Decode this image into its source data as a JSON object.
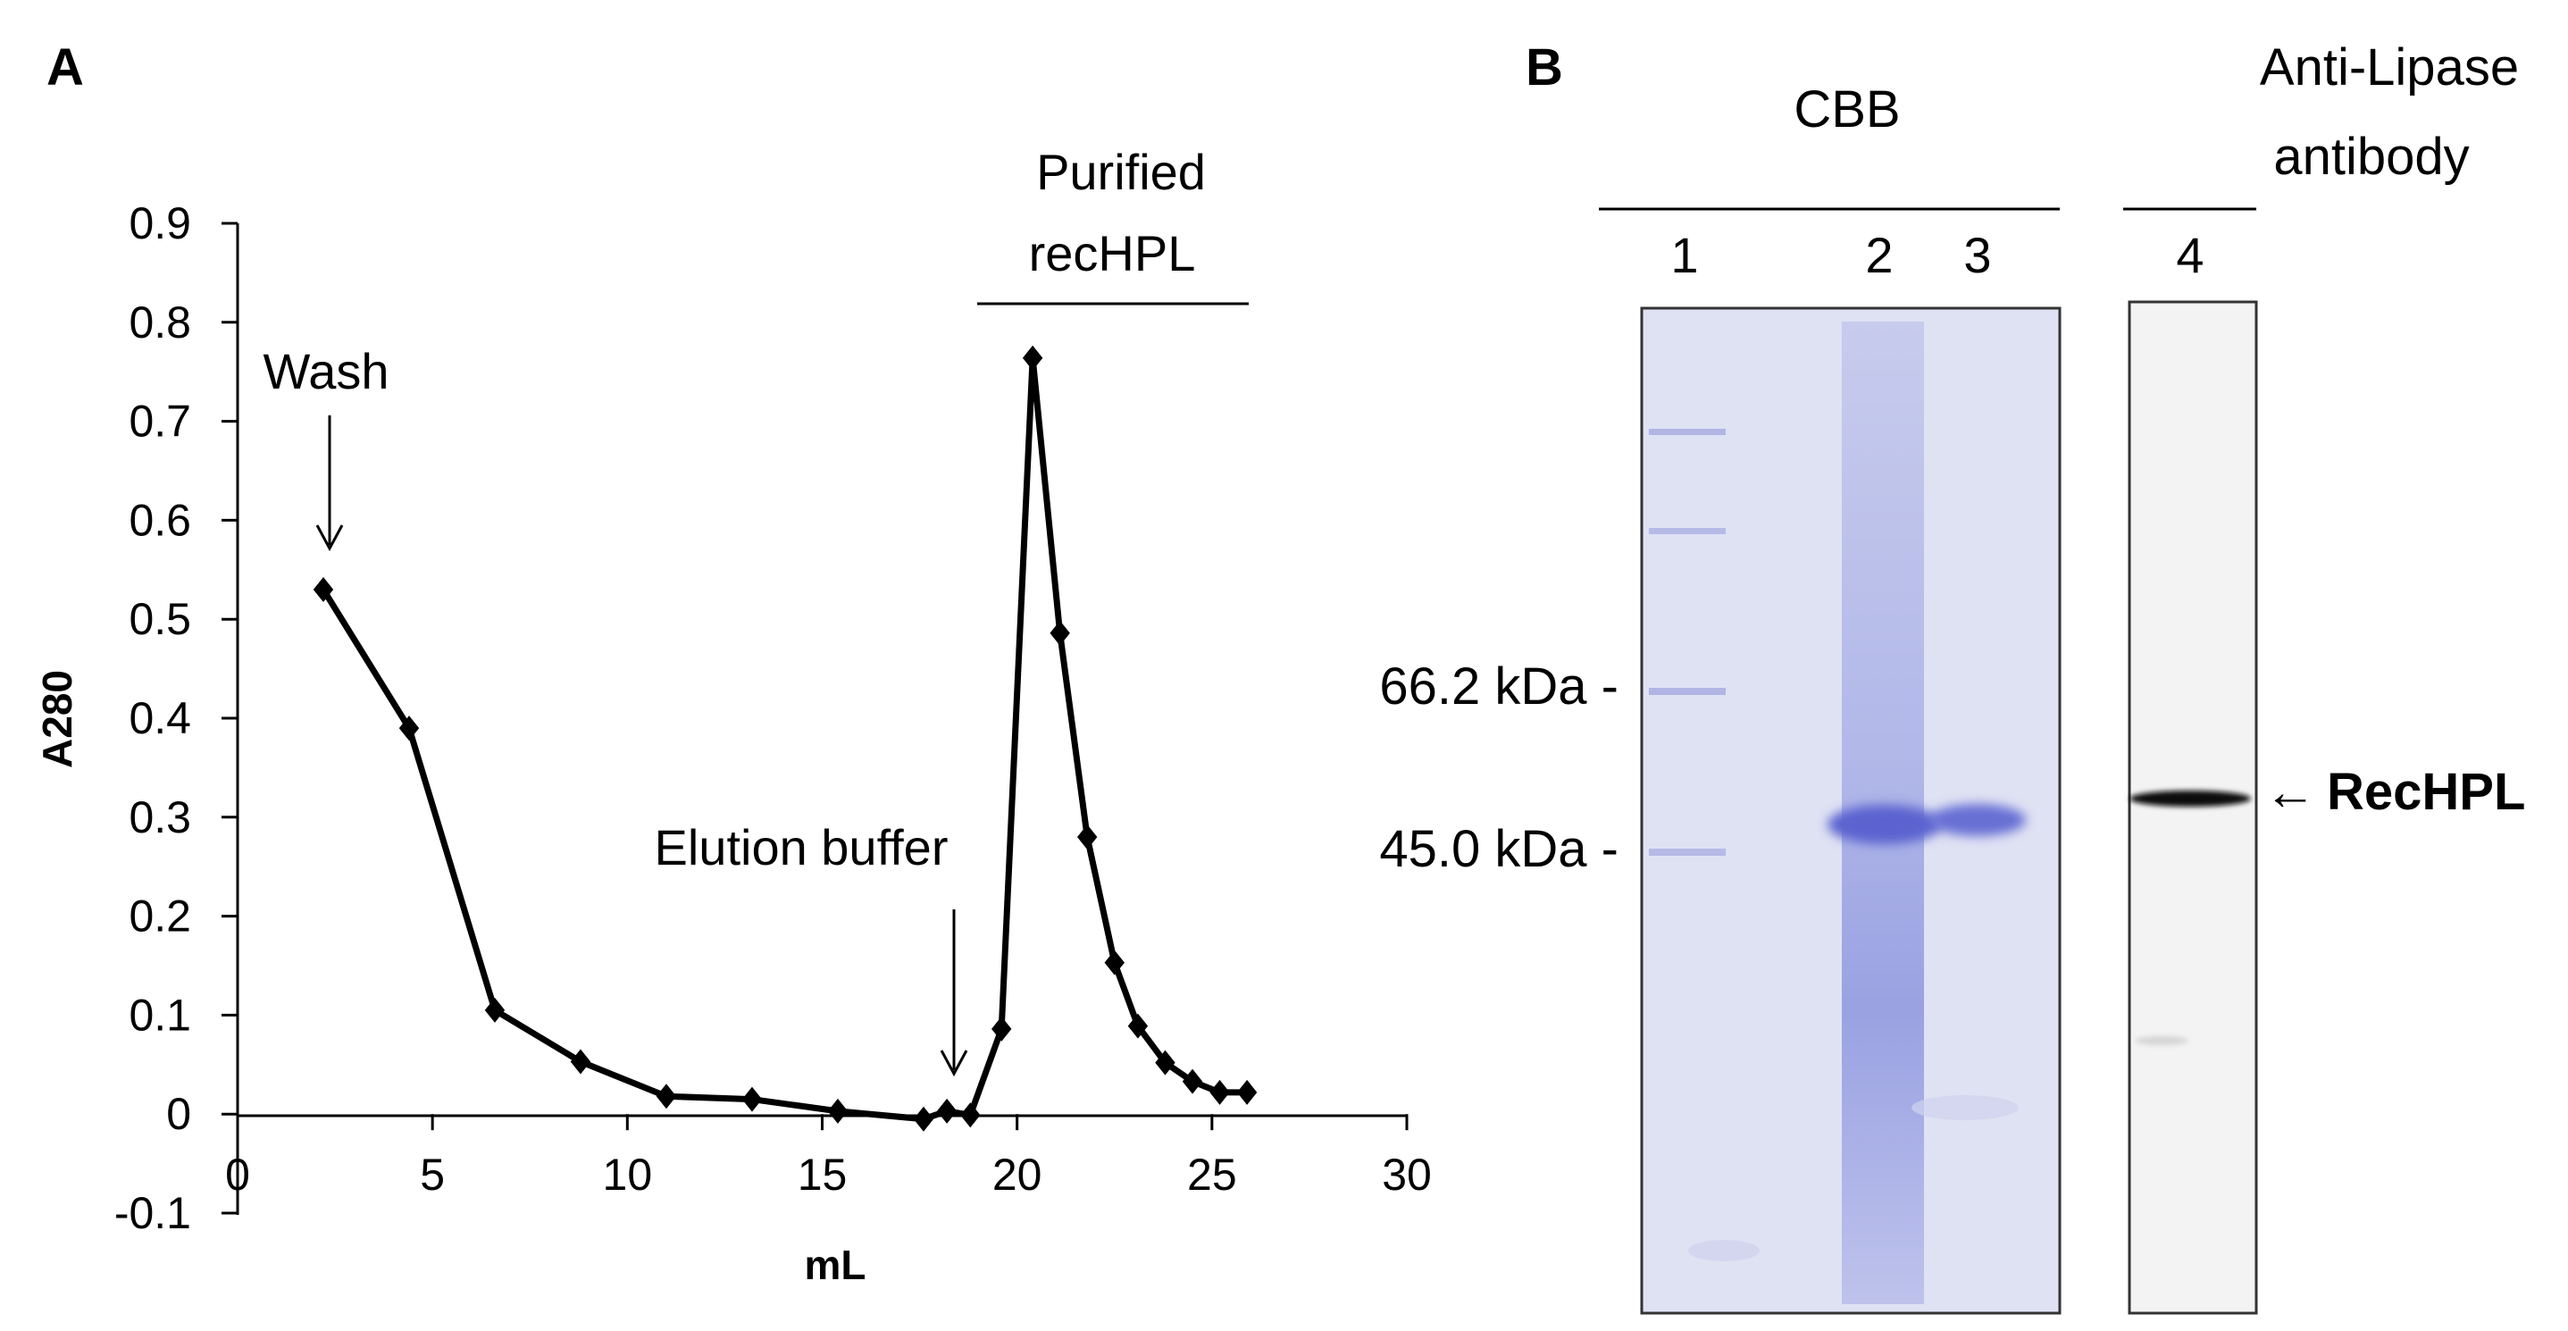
{
  "panel_a": {
    "label": "A",
    "annotations": {
      "wash": "Wash",
      "elution": "Elution buffer",
      "purified_line1": "Purified",
      "purified_line2": "recHPL"
    }
  },
  "panel_b": {
    "label": "B",
    "cbb_header": "CBB",
    "antibody_header_line1": "Anti-Lipase",
    "antibody_header_line2": "antibody",
    "lanes": [
      "1",
      "2",
      "3",
      "4"
    ],
    "markers": [
      "66.2 kDa -",
      "45.0 kDa -"
    ],
    "band_label": "RecHPL",
    "arrow_glyph": "←",
    "colors": {
      "gel": "#dfe2f3",
      "band": "#5b64d0",
      "blot_bg": "#f3f3f3",
      "blot_band": "#111111"
    }
  },
  "chart_data": {
    "type": "line",
    "title": "",
    "xlabel": "mL",
    "ylabel": "A280",
    "xlim": [
      0,
      30
    ],
    "ylim": [
      -0.1,
      0.9
    ],
    "xticks": [
      0,
      5,
      10,
      15,
      20,
      25,
      30
    ],
    "yticks": [
      -0.1,
      0,
      0.1,
      0.2,
      0.3,
      0.4,
      0.5,
      0.6,
      0.7,
      0.8,
      0.9
    ],
    "ytick_labels": [
      "-0.1",
      "0",
      "0.1",
      "0.2",
      "0.3",
      "0.4",
      "0.5",
      "0.6",
      "0.7",
      "0.8",
      "0.9"
    ],
    "grid": false,
    "series": [
      {
        "marker": "diamond",
        "color": "#000000",
        "x": [
          2.2,
          4.4,
          6.6,
          8.8,
          11.0,
          13.2,
          15.4,
          17.6,
          18.2,
          18.8,
          19.6,
          20.4,
          21.1,
          21.8,
          22.5,
          23.1,
          23.8,
          24.5,
          25.2,
          25.9
        ],
        "y": [
          0.53,
          0.39,
          0.105,
          0.053,
          0.018,
          0.015,
          0.003,
          -0.005,
          0.003,
          -0.001,
          0.086,
          0.764,
          0.486,
          0.28,
          0.153,
          0.089,
          0.052,
          0.033,
          0.022,
          0.022
        ]
      }
    ]
  }
}
